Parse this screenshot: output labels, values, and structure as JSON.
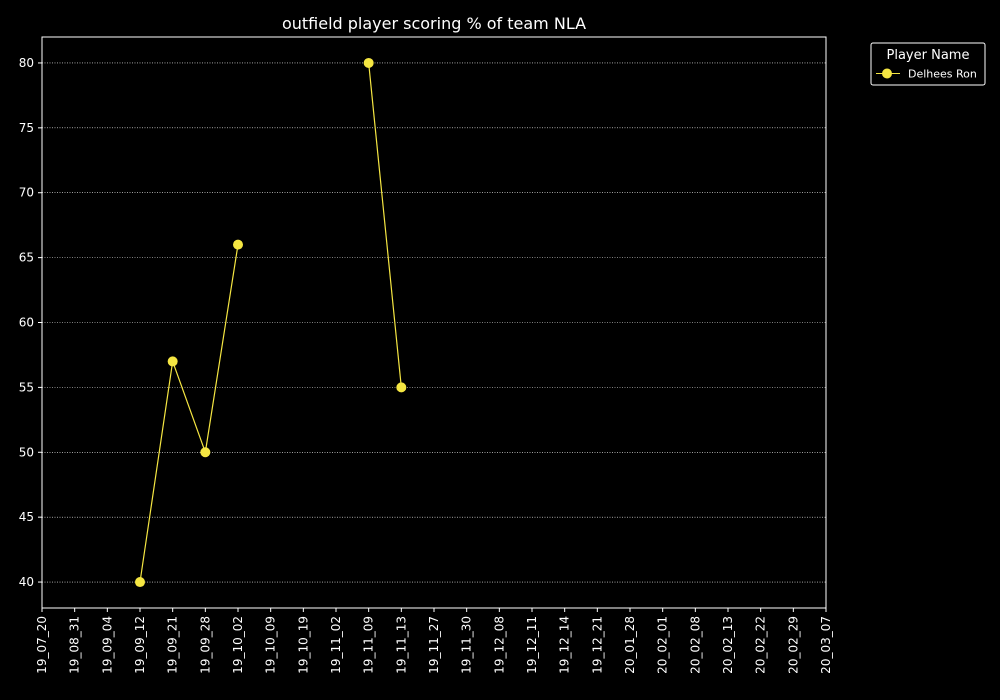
{
  "chart_data": {
    "type": "line",
    "title": "outfield player scoring % of team NLA",
    "xlabel": "",
    "ylabel": "",
    "categories": [
      "19_07_20",
      "19_08_31",
      "19_09_04",
      "19_09_12",
      "19_09_21",
      "19_09_28",
      "19_10_02",
      "19_10_09",
      "19_10_19",
      "19_11_02",
      "19_11_09",
      "19_11_13",
      "19_11_27",
      "19_11_30",
      "19_12_08",
      "19_12_11",
      "19_12_14",
      "19_12_21",
      "20_01_28",
      "20_02_01",
      "20_02_08",
      "20_02_13",
      "20_02_22",
      "20_02_29",
      "20_03_07"
    ],
    "ylim": [
      38,
      82
    ],
    "yticks": [
      40,
      45,
      50,
      55,
      60,
      65,
      70,
      75,
      80
    ],
    "grid": "horizontal dotted",
    "legend_title": "Player Name",
    "legend_position": "outside top-right",
    "series": [
      {
        "name": "Delhees Ron",
        "color": "#f5e642",
        "segments": [
          [
            {
              "x": "19_09_12",
              "y": 40
            },
            {
              "x": "19_09_21",
              "y": 57
            },
            {
              "x": "19_09_28",
              "y": 50
            },
            {
              "x": "19_10_02",
              "y": 66
            }
          ],
          [
            {
              "x": "19_11_09",
              "y": 80
            },
            {
              "x": "19_11_13",
              "y": 55
            }
          ]
        ]
      }
    ]
  }
}
